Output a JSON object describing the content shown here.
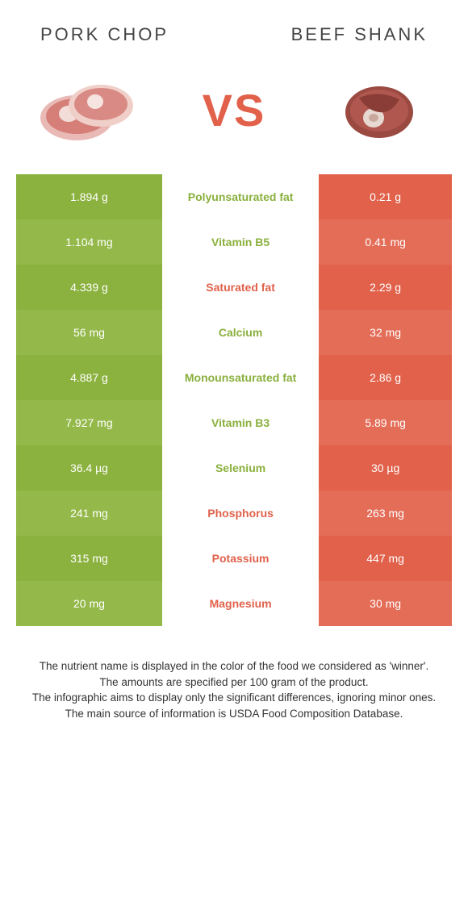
{
  "header": {
    "left_title": "PORK CHOP",
    "right_title": "BEEF SHANK"
  },
  "vs": {
    "text": "VS"
  },
  "colors": {
    "green_dark": "#8bb13e",
    "green_light": "#94b94a",
    "orange_dark": "#e1614b",
    "orange_light": "#e46d58",
    "label_green": "#8ab03d",
    "label_orange": "#e1614b"
  },
  "rows": [
    {
      "left": "1.894 g",
      "label": "Polyunsaturated fat",
      "right": "0.21 g",
      "winner": "left"
    },
    {
      "left": "1.104 mg",
      "label": "Vitamin B5",
      "right": "0.41 mg",
      "winner": "left"
    },
    {
      "left": "4.339 g",
      "label": "Saturated fat",
      "right": "2.29 g",
      "winner": "right"
    },
    {
      "left": "56 mg",
      "label": "Calcium",
      "right": "32 mg",
      "winner": "left"
    },
    {
      "left": "4.887 g",
      "label": "Monounsaturated fat",
      "right": "2.86 g",
      "winner": "left"
    },
    {
      "left": "7.927 mg",
      "label": "Vitamin B3",
      "right": "5.89 mg",
      "winner": "left"
    },
    {
      "left": "36.4 µg",
      "label": "Selenium",
      "right": "30 µg",
      "winner": "left"
    },
    {
      "left": "241 mg",
      "label": "Phosphorus",
      "right": "263 mg",
      "winner": "right"
    },
    {
      "left": "315 mg",
      "label": "Potassium",
      "right": "447 mg",
      "winner": "right"
    },
    {
      "left": "20 mg",
      "label": "Magnesium",
      "right": "30 mg",
      "winner": "right"
    }
  ],
  "footer": {
    "line1": "The nutrient name is displayed in the color of the food we considered as 'winner'.",
    "line2": "The amounts are specified per 100 gram of the product.",
    "line3": "The infographic aims to display only the significant differences, ignoring minor ones.",
    "line4": "The main source of information is USDA Food Composition Database."
  }
}
